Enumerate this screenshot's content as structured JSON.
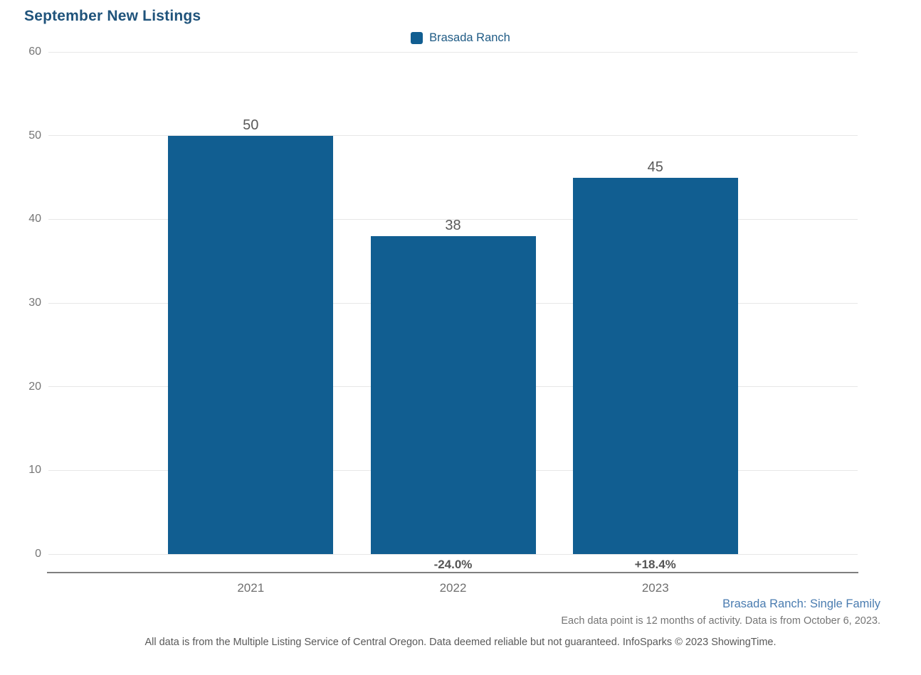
{
  "chart": {
    "title": "September New Listings",
    "legend_label": "Brasada Ranch"
  },
  "chart_data": {
    "type": "bar",
    "title": "September New Listings",
    "categories": [
      "2021",
      "2022",
      "2023"
    ],
    "values": [
      50,
      38,
      45
    ],
    "series": [
      {
        "name": "Brasada Ranch",
        "values": [
          50,
          38,
          45
        ]
      }
    ],
    "value_labels": [
      "50",
      "38",
      "45"
    ],
    "pct_change_labels": [
      "",
      "-24.0%",
      "+18.4%"
    ],
    "ylim": [
      0,
      60
    ],
    "yticks": [
      0,
      10,
      20,
      30,
      40,
      50,
      60
    ],
    "grid": true,
    "legend_position": "top-center",
    "bar_color": "#115e91"
  },
  "footer": {
    "series_note": "Brasada Ranch: Single Family",
    "data_note": "Each data point is 12 months of activity. Data is from October 6, 2023.",
    "disclaimer": "All data is from the Multiple Listing Service of Central Oregon. Data deemed reliable but not guaranteed. InfoSparks © 2023 ShowingTime."
  },
  "colors": {
    "bar": "#115e91",
    "title_text": "#1f537b",
    "legend_text": "#1f5b85",
    "series_note_text": "#4a7cb0",
    "axis_text": "#757575",
    "value_label_text": "#595959",
    "gridline": "#e7e7e7",
    "axis_line": "#7f7f7f"
  }
}
